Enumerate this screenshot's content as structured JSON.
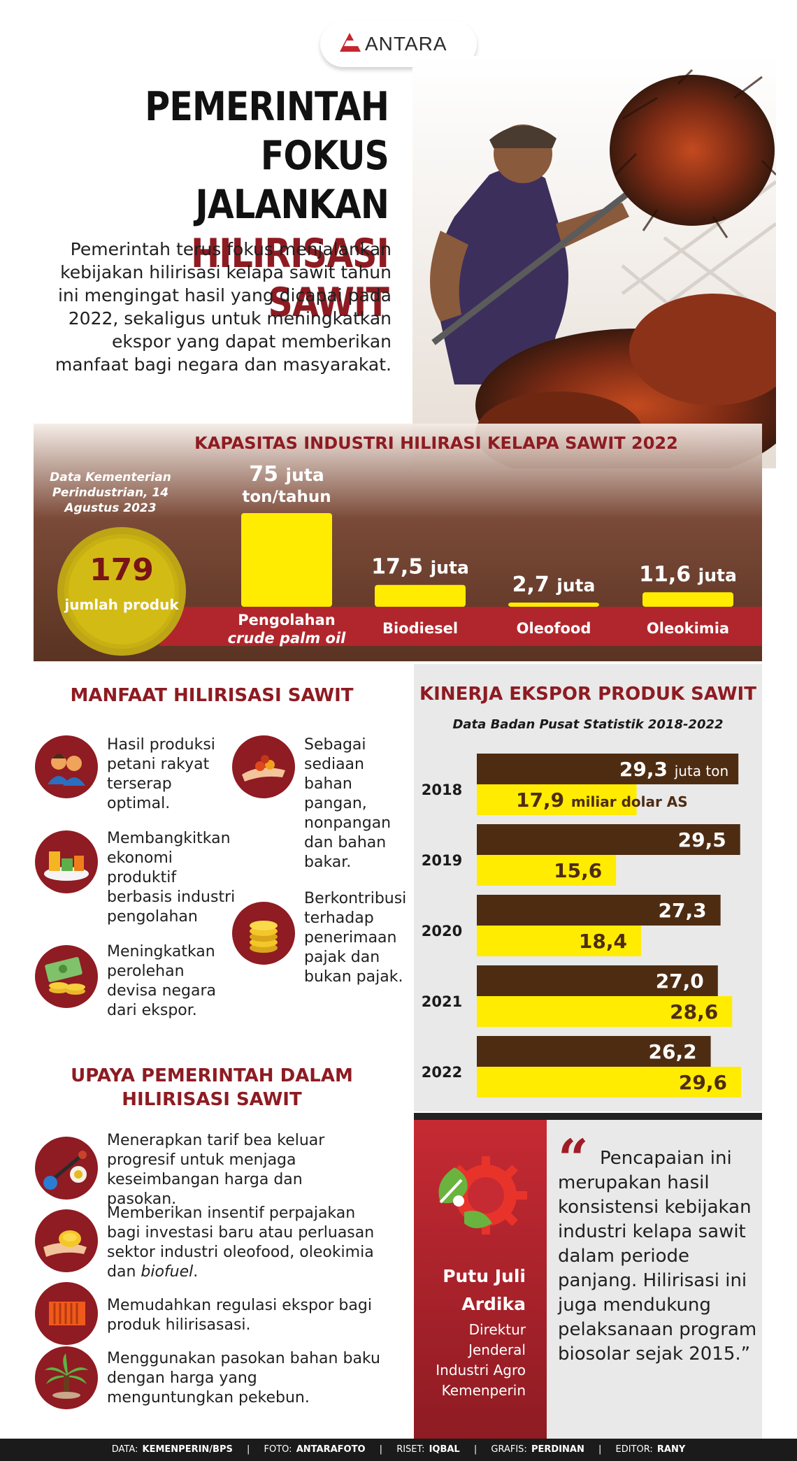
{
  "brand": {
    "name": "ANTARA"
  },
  "header": {
    "title_line1": "PEMERINTAH",
    "title_line2": "FOKUS JALANKAN",
    "title_line3": "HILIRISASI SAWIT",
    "intro": "Pemerintah terus fokus menjalankan kebijakan hilirisasi kelapa sawit tahun ini mengingat hasil yang dicapai pada 2022, sekaligus untuk meningkatkan ekspor yang dapat memberikan manfaat bagi negara dan masyarakat."
  },
  "capacity": {
    "title": "KAPASITAS INDUSTRI HILIRASI KELAPA SAWIT 2022",
    "source": "Data Kementerian Perindustrian, 14 Agustus 2023",
    "product_count": "179",
    "product_count_label": "jumlah produk",
    "colors": {
      "bar": "#ffec00",
      "band": "#b0262c"
    }
  },
  "chart_data": [
    {
      "type": "bar",
      "title": "KAPASITAS INDUSTRI HILIRASI KELAPA SAWIT 2022",
      "categories": [
        "Pengolahan crude palm oil",
        "Biodiesel",
        "Oleofood",
        "Oleokimia"
      ],
      "category_lines": [
        [
          "Pengolahan",
          "crude palm oil"
        ],
        [
          "Biodiesel"
        ],
        [
          "Oleofood"
        ],
        [
          "Oleokimia"
        ]
      ],
      "values": [
        75,
        17.5,
        2.7,
        11.6
      ],
      "value_labels": [
        "75",
        "17,5",
        "2,7",
        "11,6"
      ],
      "unit_labels": [
        "juta",
        "juta",
        "juta",
        "juta"
      ],
      "unit_note": "ton/tahun",
      "grid": false,
      "legend": "none"
    },
    {
      "type": "bar",
      "orientation": "horizontal",
      "title": "KINERJA EKSPOR PRODUK SAWIT",
      "subtitle": "Data Badan Pusat Statistik 2018-2022",
      "categories": [
        "2018",
        "2019",
        "2020",
        "2021",
        "2022"
      ],
      "series": [
        {
          "name": "juta ton",
          "color": "#4e2c12",
          "values": [
            29.3,
            29.5,
            27.3,
            27.0,
            26.2
          ],
          "labels": [
            "29,3",
            "29,5",
            "27,3",
            "27,0",
            "26,2"
          ]
        },
        {
          "name": "miliar dolar AS",
          "color": "#ffec00",
          "values": [
            17.9,
            15.6,
            18.4,
            28.6,
            29.6
          ],
          "labels": [
            "17,9",
            "15,6",
            "18,4",
            "28,6",
            "29,6"
          ]
        }
      ],
      "grid": false,
      "legend": "inline on first row"
    }
  ],
  "benefits": {
    "title": "MANFAAT HILIRISASI SAWIT",
    "items": [
      {
        "text": "Hasil produksi petani rakyat terserap optimal.",
        "icon": "farmers-icon"
      },
      {
        "text": "Membangkitkan ekonomi produktif berbasis industri pengolahan",
        "icon": "industry-blocks-icon"
      },
      {
        "text": "Meningkatkan perolehan devisa negara dari ekspor.",
        "icon": "money-coins-icon"
      },
      {
        "text": "Sebagai sediaan bahan pangan, nonpangan dan bahan bakar.",
        "icon": "palm-fruit-hand-icon"
      },
      {
        "text": "Berkontribusi terhadap penerimaan pajak dan bukan pajak.",
        "icon": "coin-stack-icon"
      }
    ]
  },
  "efforts": {
    "title_line1": "UPAYA PEMERINTAH DALAM",
    "title_line2": "HILIRISASI SAWIT",
    "items": [
      {
        "text": "Menerapkan tarif bea keluar progresif untuk menjaga keseimbangan harga dan pasokan.",
        "icon": "balance-scale-icon"
      },
      {
        "text_pre": "Memberikan insentif perpajakan bagi investasi baru atau perluasan sektor industri oleofood, oleokimia dan ",
        "text_em": "biofuel",
        "text_post": ".",
        "icon": "coin-hand-icon"
      },
      {
        "text": "Memudahkan regulasi ekspor bagi produk hilirisasasi.",
        "icon": "container-icon"
      },
      {
        "text": "Menggunakan pasokan bahan baku dengan harga yang menguntungkan pekebun.",
        "icon": "palm-tree-icon"
      }
    ]
  },
  "quote": {
    "name": "Putu Juli Ardika",
    "role": "Direktur Jenderal Industri Agro Kemenperin",
    "mark": "“",
    "text": "Pencapaian ini merupakan hasil konsistensi kebijakan industri kelapa sawit dalam periode panjang. Hilirisasi ini juga mendukung pelaksanaan program biosolar sejak 2015.”"
  },
  "footer": {
    "data_label": "DATA:",
    "data_value": "KEMENPERIN/BPS",
    "photo_label": "FOTO:",
    "photo_value": "ANTARAFOTO",
    "research_label": "RISET:",
    "research_value": "IQBAL",
    "graphic_label": "GRAFIS:",
    "graphic_value": "PERDINAN",
    "editor_label": "EDITOR:",
    "editor_value": "RANY"
  }
}
